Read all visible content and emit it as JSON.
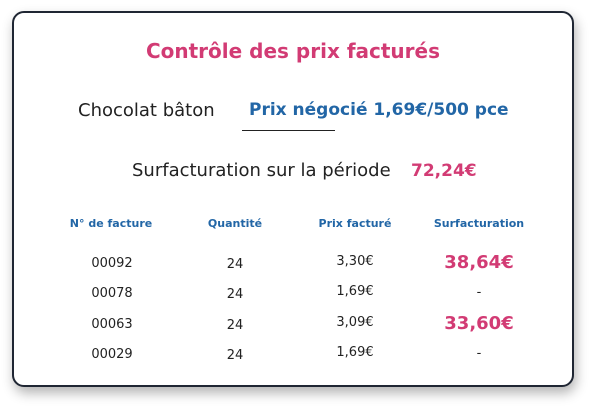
{
  "colors": {
    "accent_pink": "#d23b74",
    "accent_blue": "#2266a6",
    "text": "#222222",
    "border": "#1f2633"
  },
  "title": "Contrôle des prix facturés",
  "product": {
    "name": "Chocolat bâton",
    "negotiated_price": "Prix négocié 1,69€/500 pce"
  },
  "overbilling": {
    "label": "Surfacturation sur la période",
    "total": "72,24€"
  },
  "table": {
    "headers": [
      "N° de facture",
      "Quantité",
      "Prix facturé",
      "Surfacturation"
    ],
    "rows": [
      {
        "invoice": "00092",
        "quantity": "24",
        "price": "3,30€",
        "overbilling": "38,64€"
      },
      {
        "invoice": "00078",
        "quantity": "24",
        "price": "1,69€",
        "overbilling": "-"
      },
      {
        "invoice": "00063",
        "quantity": "24",
        "price": "3,09€",
        "overbilling": "33,60€"
      },
      {
        "invoice": "00029",
        "quantity": "24",
        "price": "1,69€",
        "overbilling": "-"
      }
    ]
  }
}
